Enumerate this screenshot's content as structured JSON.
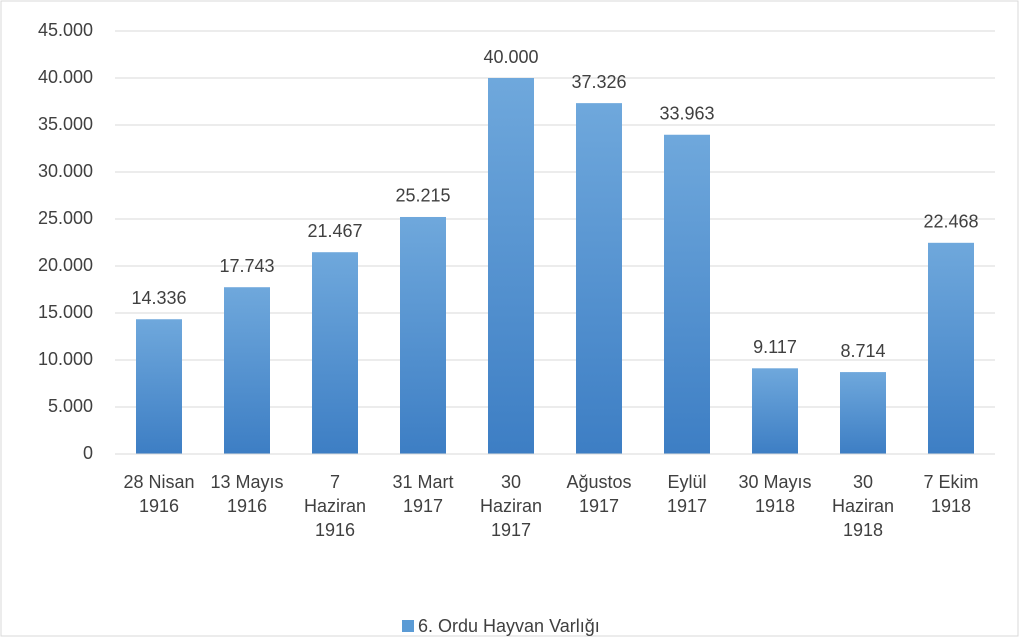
{
  "chart_data": {
    "type": "bar",
    "categories": [
      "28 Nisan 1916",
      "13 Mayıs 1916",
      "7 Haziran 1916",
      "31 Mart 1917",
      "30 Haziran 1917",
      "Ağustos 1917",
      "Eylül 1917",
      "30 Mayıs 1918",
      "30 Haziran 1918",
      "7 Ekim 1918"
    ],
    "series": [
      {
        "name": "6. Ordu Hayvan Varlığı",
        "color": "#5b9bd5",
        "values": [
          14336,
          17743,
          21467,
          25215,
          40000,
          37326,
          33963,
          9117,
          8714,
          22468
        ],
        "value_labels": [
          "14.336",
          "17.743",
          "21.467",
          "25.215",
          "40.000",
          "37.326",
          "33.963",
          "9.117",
          "8.714",
          "22.468"
        ]
      }
    ],
    "ylim": [
      0,
      45000
    ],
    "yticks": [
      0,
      {
        "value": 5000,
        "label": "5.000"
      },
      {
        "value": 10000,
        "label": "10.000"
      },
      {
        "value": 15000,
        "label": "15.000"
      },
      {
        "value": 20000,
        "label": "20.000"
      },
      {
        "value": 25000,
        "label": "25.000"
      },
      {
        "value": 30000,
        "label": "30.000"
      },
      {
        "value": 35000,
        "label": "35.000"
      },
      {
        "value": 40000,
        "label": "40.000"
      },
      {
        "value": 45000,
        "label": "45.000"
      }
    ],
    "grid": true,
    "legend": "bottom"
  }
}
